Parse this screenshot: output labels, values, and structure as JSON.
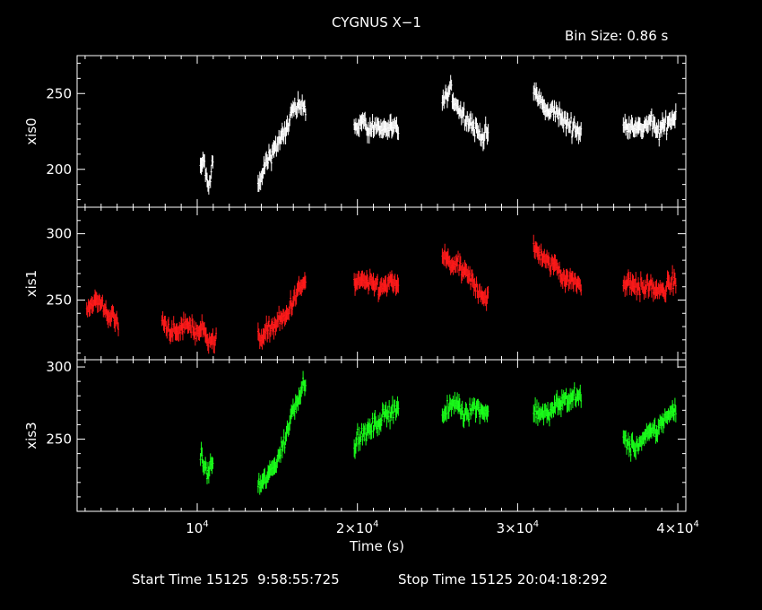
{
  "chart_data": {
    "type": "scatter",
    "title": "CYGNUS X−1",
    "bin_size_label": "Bin Size: 0.86 s",
    "xlabel": "Time (s)",
    "xlim": [
      2500,
      40500
    ],
    "x_ticks": [
      {
        "value": 10000,
        "mantissa": "10",
        "exp": "4",
        "times": ""
      },
      {
        "value": 20000,
        "mantissa": "2×10",
        "exp": "4",
        "times": ""
      },
      {
        "value": 30000,
        "mantissa": "3×10",
        "exp": "4",
        "times": ""
      },
      {
        "value": 40000,
        "mantissa": "4×10",
        "exp": "4",
        "times": ""
      }
    ],
    "footer": {
      "start_time": "Start Time 15125  9:58:55:725",
      "stop_time": "Stop Time 15125 20:04:18:292"
    },
    "panels": [
      {
        "name": "xis0",
        "ylabel": "xis0",
        "color": "#ffffff",
        "ylim": [
          175,
          275
        ],
        "yticks": [
          200,
          250
        ],
        "segments": [
          {
            "t0": 10200,
            "t1": 11000,
            "pts": [
              [
                10250,
                200
              ],
              [
                10400,
                208
              ],
              [
                10550,
                195
              ],
              [
                10700,
                186
              ],
              [
                10850,
                198
              ],
              [
                10950,
                204
              ]
            ]
          },
          {
            "t0": 13800,
            "t1": 16800,
            "pts": [
              [
                13900,
                190
              ],
              [
                14300,
                205
              ],
              [
                14700,
                212
              ],
              [
                15100,
                218
              ],
              [
                15500,
                224
              ],
              [
                15900,
                238
              ],
              [
                16300,
                240
              ],
              [
                16700,
                242
              ]
            ]
          },
          {
            "t0": 19800,
            "t1": 22600,
            "pts": [
              [
                19900,
                228
              ],
              [
                20300,
                232
              ],
              [
                20700,
                225
              ],
              [
                21100,
                230
              ],
              [
                21500,
                226
              ],
              [
                21900,
                228
              ],
              [
                22300,
                226
              ]
            ]
          },
          {
            "t0": 25300,
            "t1": 28200,
            "pts": [
              [
                25400,
                245
              ],
              [
                25800,
                252
              ],
              [
                26200,
                242
              ],
              [
                26600,
                236
              ],
              [
                27000,
                232
              ],
              [
                27400,
                226
              ],
              [
                27800,
                222
              ],
              [
                28100,
                224
              ]
            ]
          },
          {
            "t0": 31000,
            "t1": 34000,
            "pts": [
              [
                31100,
                250
              ],
              [
                31500,
                244
              ],
              [
                31900,
                236
              ],
              [
                32300,
                240
              ],
              [
                32700,
                234
              ],
              [
                33100,
                230
              ],
              [
                33500,
                228
              ],
              [
                33900,
                224
              ]
            ]
          },
          {
            "t0": 36600,
            "t1": 39900,
            "pts": [
              [
                36700,
                228
              ],
              [
                37100,
                231
              ],
              [
                37500,
                226
              ],
              [
                37900,
                228
              ],
              [
                38300,
                232
              ],
              [
                38700,
                224
              ],
              [
                39100,
                228
              ],
              [
                39500,
                232
              ],
              [
                39850,
                236
              ]
            ]
          }
        ]
      },
      {
        "name": "xis1",
        "ylabel": "xis1",
        "color": "#ff1a1a",
        "ylim": [
          205,
          320
        ],
        "yticks": [
          250,
          300
        ],
        "segments": [
          {
            "t0": 3100,
            "t1": 5100,
            "pts": [
              [
                3200,
                245
              ],
              [
                3600,
                250
              ],
              [
                4000,
                246
              ],
              [
                4400,
                240
              ],
              [
                4800,
                236
              ],
              [
                5050,
                232
              ]
            ]
          },
          {
            "t0": 7800,
            "t1": 11200,
            "pts": [
              [
                7900,
                232
              ],
              [
                8300,
                228
              ],
              [
                8700,
                224
              ],
              [
                9100,
                230
              ],
              [
                9500,
                232
              ],
              [
                9900,
                226
              ],
              [
                10300,
                228
              ],
              [
                10700,
                222
              ],
              [
                11100,
                218
              ]
            ]
          },
          {
            "t0": 13800,
            "t1": 16800,
            "pts": [
              [
                13900,
                222
              ],
              [
                14300,
                226
              ],
              [
                14700,
                230
              ],
              [
                15100,
                234
              ],
              [
                15500,
                236
              ],
              [
                15900,
                248
              ],
              [
                16300,
                256
              ],
              [
                16700,
                264
              ]
            ]
          },
          {
            "t0": 19800,
            "t1": 22600,
            "pts": [
              [
                19900,
                262
              ],
              [
                20300,
                266
              ],
              [
                20700,
                260
              ],
              [
                21100,
                262
              ],
              [
                21500,
                258
              ],
              [
                21900,
                262
              ],
              [
                22300,
                262
              ]
            ]
          },
          {
            "t0": 25300,
            "t1": 28200,
            "pts": [
              [
                25400,
                282
              ],
              [
                25800,
                278
              ],
              [
                26200,
                276
              ],
              [
                26600,
                272
              ],
              [
                27000,
                266
              ],
              [
                27400,
                260
              ],
              [
                27800,
                254
              ],
              [
                28100,
                252
              ]
            ]
          },
          {
            "t0": 31000,
            "t1": 34000,
            "pts": [
              [
                31100,
                288
              ],
              [
                31500,
                284
              ],
              [
                31900,
                276
              ],
              [
                32300,
                278
              ],
              [
                32700,
                270
              ],
              [
                33100,
                266
              ],
              [
                33500,
                264
              ],
              [
                33900,
                262
              ]
            ]
          },
          {
            "t0": 36600,
            "t1": 39900,
            "pts": [
              [
                36700,
                262
              ],
              [
                37100,
                264
              ],
              [
                37500,
                260
              ],
              [
                37900,
                258
              ],
              [
                38300,
                262
              ],
              [
                38700,
                256
              ],
              [
                39100,
                256
              ],
              [
                39500,
                262
              ],
              [
                39850,
                266
              ]
            ]
          }
        ]
      },
      {
        "name": "xis3",
        "ylabel": "xis3",
        "color": "#1aff1a",
        "ylim": [
          200,
          305
        ],
        "yticks": [
          250,
          300
        ],
        "segments": [
          {
            "t0": 10200,
            "t1": 11000,
            "pts": [
              [
                10250,
                238
              ],
              [
                10450,
                230
              ],
              [
                10650,
                226
              ],
              [
                10850,
                232
              ],
              [
                10950,
                234
              ]
            ]
          },
          {
            "t0": 13800,
            "t1": 16800,
            "pts": [
              [
                13900,
                218
              ],
              [
                14300,
                222
              ],
              [
                14700,
                230
              ],
              [
                15100,
                238
              ],
              [
                15500,
                250
              ],
              [
                15900,
                268
              ],
              [
                16300,
                280
              ],
              [
                16700,
                290
              ]
            ]
          },
          {
            "t0": 19800,
            "t1": 22600,
            "pts": [
              [
                19900,
                248
              ],
              [
                20300,
                252
              ],
              [
                20700,
                256
              ],
              [
                21100,
                260
              ],
              [
                21500,
                264
              ],
              [
                21900,
                268
              ],
              [
                22300,
                272
              ]
            ]
          },
          {
            "t0": 25300,
            "t1": 28200,
            "pts": [
              [
                25400,
                266
              ],
              [
                25800,
                272
              ],
              [
                26200,
                276
              ],
              [
                26600,
                268
              ],
              [
                27000,
                270
              ],
              [
                27400,
                272
              ],
              [
                27800,
                270
              ],
              [
                28100,
                268
              ]
            ]
          },
          {
            "t0": 31000,
            "t1": 34000,
            "pts": [
              [
                31100,
                270
              ],
              [
                31500,
                268
              ],
              [
                31900,
                266
              ],
              [
                32300,
                272
              ],
              [
                32700,
                276
              ],
              [
                33100,
                278
              ],
              [
                33500,
                280
              ],
              [
                33900,
                278
              ]
            ]
          },
          {
            "t0": 36600,
            "t1": 39900,
            "pts": [
              [
                36700,
                250
              ],
              [
                37100,
                244
              ],
              [
                37500,
                246
              ],
              [
                37900,
                250
              ],
              [
                38300,
                254
              ],
              [
                38700,
                256
              ],
              [
                39100,
                264
              ],
              [
                39500,
                266
              ],
              [
                39850,
                272
              ]
            ]
          }
        ]
      }
    ]
  }
}
